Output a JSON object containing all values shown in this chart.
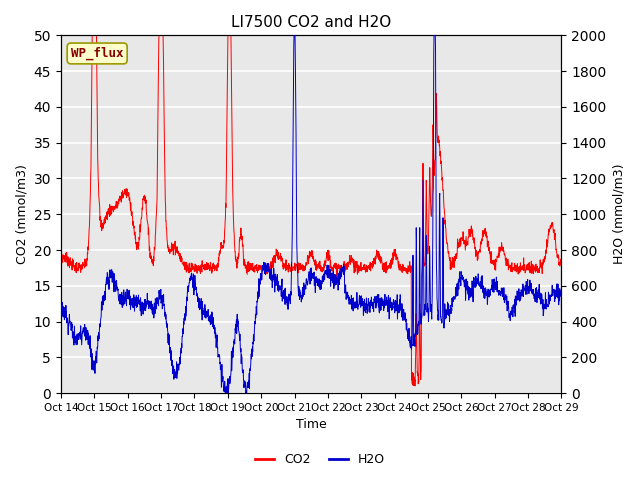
{
  "title": "LI7500 CO2 and H2O",
  "xlabel": "Time",
  "ylabel_left": "CO2 (mmol/m3)",
  "ylabel_right": "H2O (mmol/m3)",
  "xlim": [
    0,
    15
  ],
  "ylim_left": [
    0,
    50
  ],
  "ylim_right": [
    0,
    2000
  ],
  "x_tick_labels": [
    "Oct 14",
    "Oct 15",
    "Oct 16",
    "Oct 17",
    "Oct 18",
    "Oct 19",
    "Oct 20",
    "Oct 21",
    "Oct 22",
    "Oct 23",
    "Oct 24",
    "Oct 25",
    "Oct 26",
    "Oct 27",
    "Oct 28",
    "Oct 29"
  ],
  "co2_color": "#FF0000",
  "h2o_color": "#0000CC",
  "background_color": "#E8E8E8",
  "annotation_text": "WP_flux",
  "annotation_facecolor": "#FFFFCC",
  "annotation_edgecolor": "#999900",
  "annotation_textcolor": "#880000",
  "legend_co2": "CO2",
  "legend_h2o": "H2O",
  "grid_color": "white",
  "title_fontsize": 11
}
